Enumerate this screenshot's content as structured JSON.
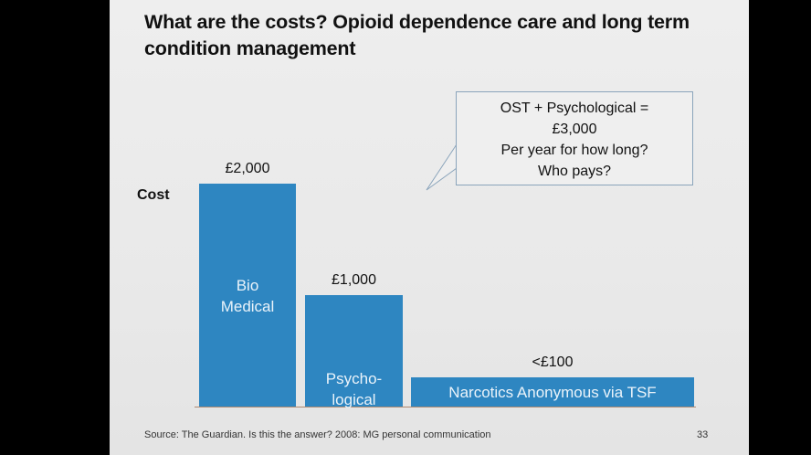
{
  "slide": {
    "title": "What are the costs? Opioid dependence care and long term condition management",
    "y_label": "Cost",
    "callout": {
      "line1": "OST + Psychological =",
      "line2": "£3,000",
      "line3": "Per year for how long?",
      "line4": "Who pays?"
    },
    "footer": "Source: The Guardian. Is this the answer? 2008: MG personal communication",
    "page_number": "33"
  },
  "chart_data": {
    "type": "bar",
    "categories": [
      "Bio Medical",
      "Psycho-logical",
      "Narcotics Anonymous via TSF"
    ],
    "values": [
      2000,
      1000,
      100
    ],
    "value_labels": [
      "£2,000",
      "£1,000",
      "<£100"
    ],
    "bar_labels": [
      [
        "Bio",
        "Medical"
      ],
      [
        "Psycho-",
        "logical"
      ],
      [
        "Narcotics Anonymous via TSF"
      ]
    ],
    "ylabel": "Cost",
    "bar_color": "#2e86c1"
  }
}
